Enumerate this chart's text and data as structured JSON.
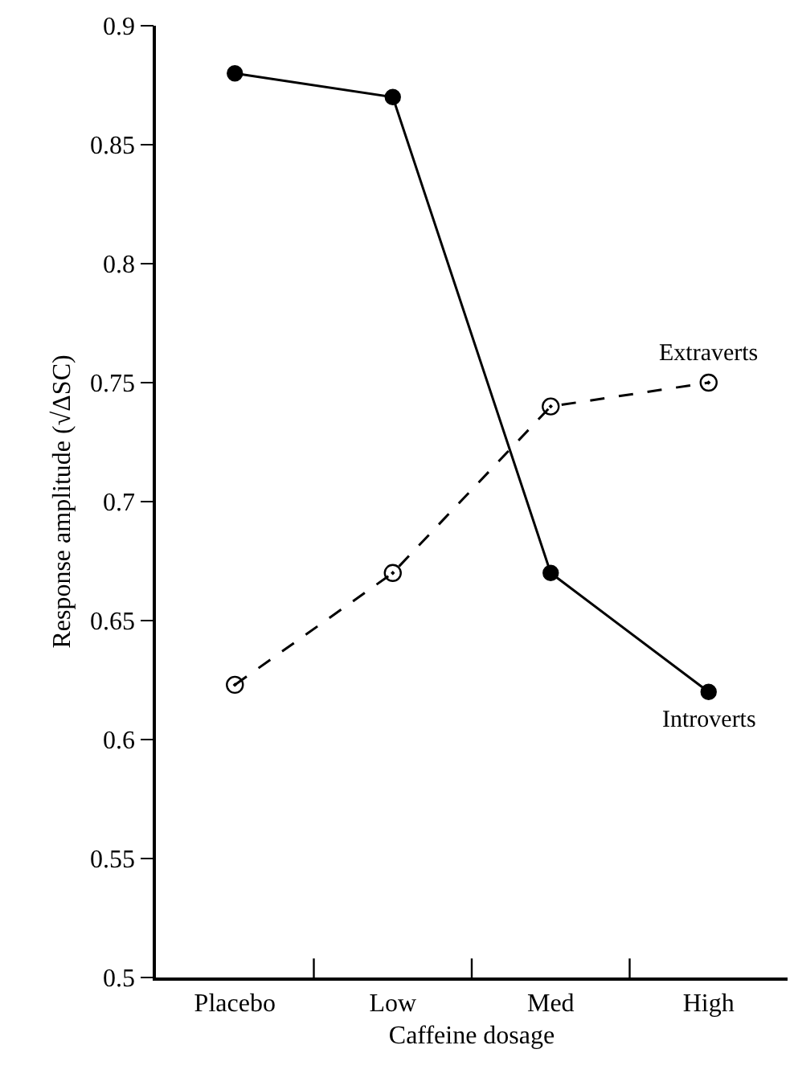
{
  "chart_data": {
    "type": "line",
    "xlabel": "Caffeine dosage",
    "ylabel": "Response amplitude (√ΔSC)",
    "categories": [
      "Placebo",
      "Low",
      "Med",
      "High"
    ],
    "series": [
      {
        "name": "Introverts",
        "color": "#000000",
        "values": [
          0.88,
          0.87,
          0.67,
          0.62
        ],
        "line_style": "solid",
        "marker": "circle"
      },
      {
        "name": "Extraverts",
        "color": "#000000",
        "values": [
          0.623,
          0.67,
          0.74,
          0.75
        ],
        "line_style": "dashed",
        "marker": "circle"
      }
    ],
    "ylim": [
      0.5,
      0.9
    ],
    "yticks": [
      0.5,
      0.55,
      0.6,
      0.65,
      0.7,
      0.75,
      0.8,
      0.85,
      0.9
    ],
    "legend": false
  }
}
